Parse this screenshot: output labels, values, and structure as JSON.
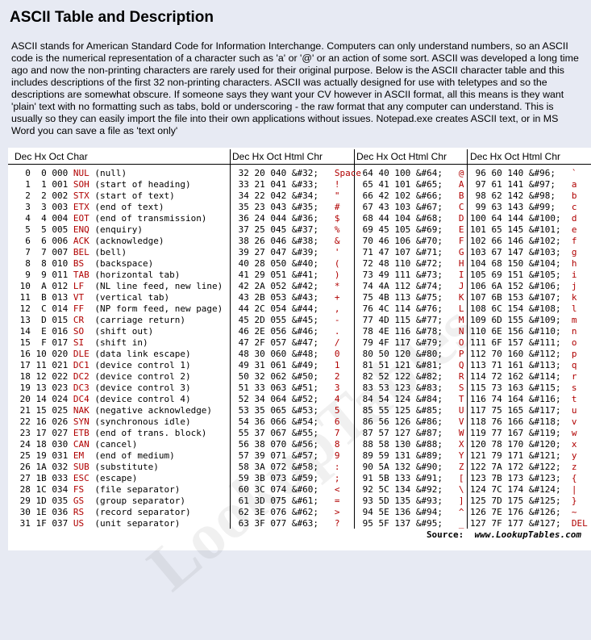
{
  "title": "ASCII Table and Description",
  "intro": "ASCII stands for American Standard Code for Information Interchange. Computers can only understand numbers, so an ASCII code is the numerical representation of a character such as 'a' or '@' or an action of some sort. ASCII was developed a long time ago and now the non-printing characters are rarely used for their original purpose. Below is the ASCII character table and this includes descriptions of the first 32 non-printing characters. ASCII was actually designed for use with teletypes and so the descriptions are somewhat obscure. If someone says they want your CV however in ASCII format, all this means is they want 'plain' text with no formatting such as tabs, bold or underscoring - the raw format that any computer can understand. This is usually so they can easily import the file into their own applications without issues. Notepad.exe creates ASCII text, or in MS Word you can save a file as 'text only'",
  "headers": {
    "col1": "Dec  Hx Oct  Char",
    "col2": "Dec  Hx  Oct    Html    Chr",
    "col3": "Dec  Hx  Oct   Html  Chr",
    "col4": "Dec  Hx  Oct  Html  Chr"
  },
  "source_label": "Source:",
  "source_url": "www.LookupTables.com",
  "watermark": "LookupTables",
  "control_chars": [
    {
      "dec": "0",
      "hx": "0",
      "oct": "000",
      "abbr": "NUL",
      "desc": "(null)"
    },
    {
      "dec": "1",
      "hx": "1",
      "oct": "001",
      "abbr": "SOH",
      "desc": "(start of heading)"
    },
    {
      "dec": "2",
      "hx": "2",
      "oct": "002",
      "abbr": "STX",
      "desc": "(start of text)"
    },
    {
      "dec": "3",
      "hx": "3",
      "oct": "003",
      "abbr": "ETX",
      "desc": "(end of text)"
    },
    {
      "dec": "4",
      "hx": "4",
      "oct": "004",
      "abbr": "EOT",
      "desc": "(end of transmission)"
    },
    {
      "dec": "5",
      "hx": "5",
      "oct": "005",
      "abbr": "ENQ",
      "desc": "(enquiry)"
    },
    {
      "dec": "6",
      "hx": "6",
      "oct": "006",
      "abbr": "ACK",
      "desc": "(acknowledge)"
    },
    {
      "dec": "7",
      "hx": "7",
      "oct": "007",
      "abbr": "BEL",
      "desc": "(bell)"
    },
    {
      "dec": "8",
      "hx": "8",
      "oct": "010",
      "abbr": "BS",
      "desc": "(backspace)"
    },
    {
      "dec": "9",
      "hx": "9",
      "oct": "011",
      "abbr": "TAB",
      "desc": "(horizontal tab)"
    },
    {
      "dec": "10",
      "hx": "A",
      "oct": "012",
      "abbr": "LF",
      "desc": "(NL line feed, new line)"
    },
    {
      "dec": "11",
      "hx": "B",
      "oct": "013",
      "abbr": "VT",
      "desc": "(vertical tab)"
    },
    {
      "dec": "12",
      "hx": "C",
      "oct": "014",
      "abbr": "FF",
      "desc": "(NP form feed, new page)"
    },
    {
      "dec": "13",
      "hx": "D",
      "oct": "015",
      "abbr": "CR",
      "desc": "(carriage return)"
    },
    {
      "dec": "14",
      "hx": "E",
      "oct": "016",
      "abbr": "SO",
      "desc": "(shift out)"
    },
    {
      "dec": "15",
      "hx": "F",
      "oct": "017",
      "abbr": "SI",
      "desc": "(shift in)"
    },
    {
      "dec": "16",
      "hx": "10",
      "oct": "020",
      "abbr": "DLE",
      "desc": "(data link escape)"
    },
    {
      "dec": "17",
      "hx": "11",
      "oct": "021",
      "abbr": "DC1",
      "desc": "(device control 1)"
    },
    {
      "dec": "18",
      "hx": "12",
      "oct": "022",
      "abbr": "DC2",
      "desc": "(device control 2)"
    },
    {
      "dec": "19",
      "hx": "13",
      "oct": "023",
      "abbr": "DC3",
      "desc": "(device control 3)"
    },
    {
      "dec": "20",
      "hx": "14",
      "oct": "024",
      "abbr": "DC4",
      "desc": "(device control 4)"
    },
    {
      "dec": "21",
      "hx": "15",
      "oct": "025",
      "abbr": "NAK",
      "desc": "(negative acknowledge)"
    },
    {
      "dec": "22",
      "hx": "16",
      "oct": "026",
      "abbr": "SYN",
      "desc": "(synchronous idle)"
    },
    {
      "dec": "23",
      "hx": "17",
      "oct": "027",
      "abbr": "ETB",
      "desc": "(end of trans. block)"
    },
    {
      "dec": "24",
      "hx": "18",
      "oct": "030",
      "abbr": "CAN",
      "desc": "(cancel)"
    },
    {
      "dec": "25",
      "hx": "19",
      "oct": "031",
      "abbr": "EM",
      "desc": "(end of medium)"
    },
    {
      "dec": "26",
      "hx": "1A",
      "oct": "032",
      "abbr": "SUB",
      "desc": "(substitute)"
    },
    {
      "dec": "27",
      "hx": "1B",
      "oct": "033",
      "abbr": "ESC",
      "desc": "(escape)"
    },
    {
      "dec": "28",
      "hx": "1C",
      "oct": "034",
      "abbr": "FS",
      "desc": "(file separator)"
    },
    {
      "dec": "29",
      "hx": "1D",
      "oct": "035",
      "abbr": "GS",
      "desc": "(group separator)"
    },
    {
      "dec": "30",
      "hx": "1E",
      "oct": "036",
      "abbr": "RS",
      "desc": "(record separator)"
    },
    {
      "dec": "31",
      "hx": "1F",
      "oct": "037",
      "abbr": "US",
      "desc": "(unit separator)"
    }
  ],
  "printable_32_63": [
    "Space",
    "!",
    "\"",
    "#",
    "$",
    "%",
    "&",
    "'",
    "(",
    ")",
    "*",
    "+",
    ",",
    "-",
    ".",
    "/",
    "0",
    "1",
    "2",
    "3",
    "4",
    "5",
    "6",
    "7",
    "8",
    "9",
    ":",
    ";",
    "<",
    "=",
    ">",
    "?"
  ],
  "printable_64_95": [
    "@",
    "A",
    "B",
    "C",
    "D",
    "E",
    "F",
    "G",
    "H",
    "I",
    "J",
    "K",
    "L",
    "M",
    "N",
    "O",
    "P",
    "Q",
    "R",
    "S",
    "T",
    "U",
    "V",
    "W",
    "X",
    "Y",
    "Z",
    "[",
    "\\",
    "]",
    "^",
    "_"
  ],
  "printable_96_127": [
    "`",
    "a",
    "b",
    "c",
    "d",
    "e",
    "f",
    "g",
    "h",
    "i",
    "j",
    "k",
    "l",
    "m",
    "n",
    "o",
    "p",
    "q",
    "r",
    "s",
    "t",
    "u",
    "v",
    "w",
    "x",
    "y",
    "z",
    "{",
    "|",
    "}",
    "~",
    "DEL"
  ],
  "colors": {
    "background": "#e7eaf3",
    "table_bg": "#ffffff",
    "accent_red": "#b00000"
  }
}
